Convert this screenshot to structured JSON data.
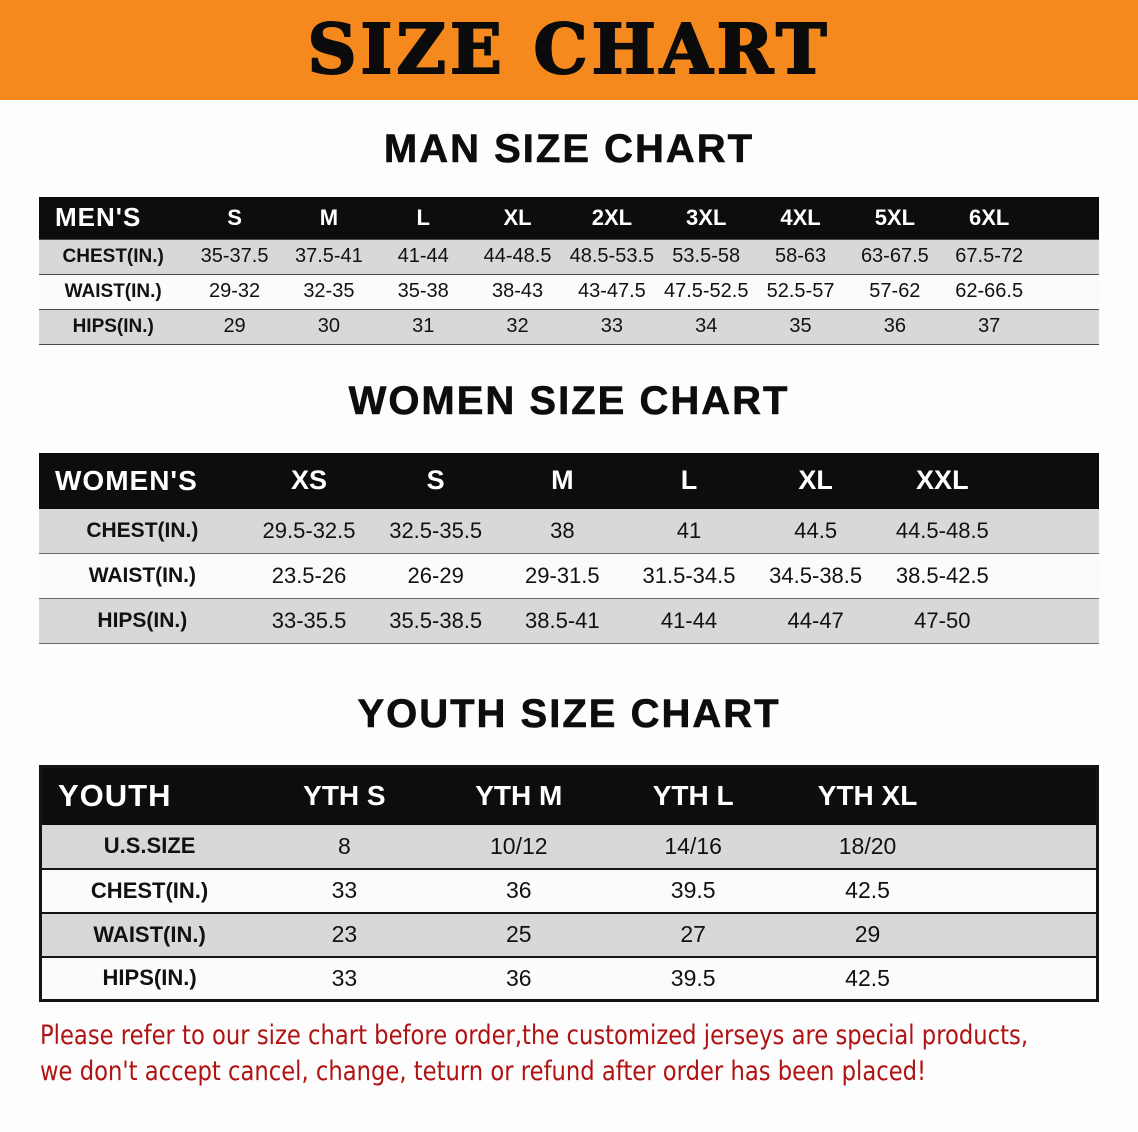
{
  "banner": {
    "title": "SIZE CHART"
  },
  "colors": {
    "banner_bg": "#f6891e",
    "table_header_bg": "#0d0d0d",
    "row_stripe": "#d8d8d8",
    "row_plain": "#fbfbfb",
    "footer_text": "#b01212"
  },
  "sections": [
    {
      "heading": "MAN SIZE CHART",
      "table": {
        "header": [
          "MEN'S",
          "S",
          "M",
          "L",
          "XL",
          "2XL",
          "3XL",
          "4XL",
          "5XL",
          "6XL"
        ],
        "rows": [
          [
            "CHEST(IN.)",
            "35-37.5",
            "37.5-41",
            "41-44",
            "44-48.5",
            "48.5-53.5",
            "53.5-58",
            "58-63",
            "63-67.5",
            "67.5-72"
          ],
          [
            "WAIST(IN.)",
            "29-32",
            "32-35",
            "35-38",
            "38-43",
            "43-47.5",
            "47.5-52.5",
            "52.5-57",
            "57-62",
            "62-66.5"
          ],
          [
            "HIPS(IN.)",
            "29",
            "30",
            "31",
            "32",
            "33",
            "34",
            "35",
            "36",
            "37"
          ]
        ]
      }
    },
    {
      "heading": "WOMEN SIZE CHART",
      "table": {
        "header": [
          "WOMEN'S",
          "XS",
          "S",
          "M",
          "L",
          "XL",
          "XXL"
        ],
        "rows": [
          [
            "CHEST(IN.)",
            "29.5-32.5",
            "32.5-35.5",
            "38",
            "41",
            "44.5",
            "44.5-48.5"
          ],
          [
            "WAIST(IN.)",
            "23.5-26",
            "26-29",
            "29-31.5",
            "31.5-34.5",
            "34.5-38.5",
            "38.5-42.5"
          ],
          [
            "HIPS(IN.)",
            "33-35.5",
            "35.5-38.5",
            "38.5-41",
            "41-44",
            "44-47",
            "47-50"
          ]
        ]
      }
    },
    {
      "heading": "YOUTH SIZE CHART",
      "table": {
        "header": [
          "YOUTH",
          "YTH S",
          "YTH M",
          "YTH L",
          "YTH XL"
        ],
        "rows": [
          [
            "U.S.SIZE",
            "8",
            "10/12",
            "14/16",
            "18/20"
          ],
          [
            "CHEST(IN.)",
            "33",
            "36",
            "39.5",
            "42.5"
          ],
          [
            "WAIST(IN.)",
            "23",
            "25",
            "27",
            "29"
          ],
          [
            "HIPS(IN.)",
            "33",
            "36",
            "39.5",
            "42.5"
          ]
        ]
      }
    }
  ],
  "footer": {
    "line1": "Please refer to our size chart before order,the customized jerseys are special products,",
    "line2": "we don't accept cancel, change, teturn or refund after order has been placed!"
  }
}
